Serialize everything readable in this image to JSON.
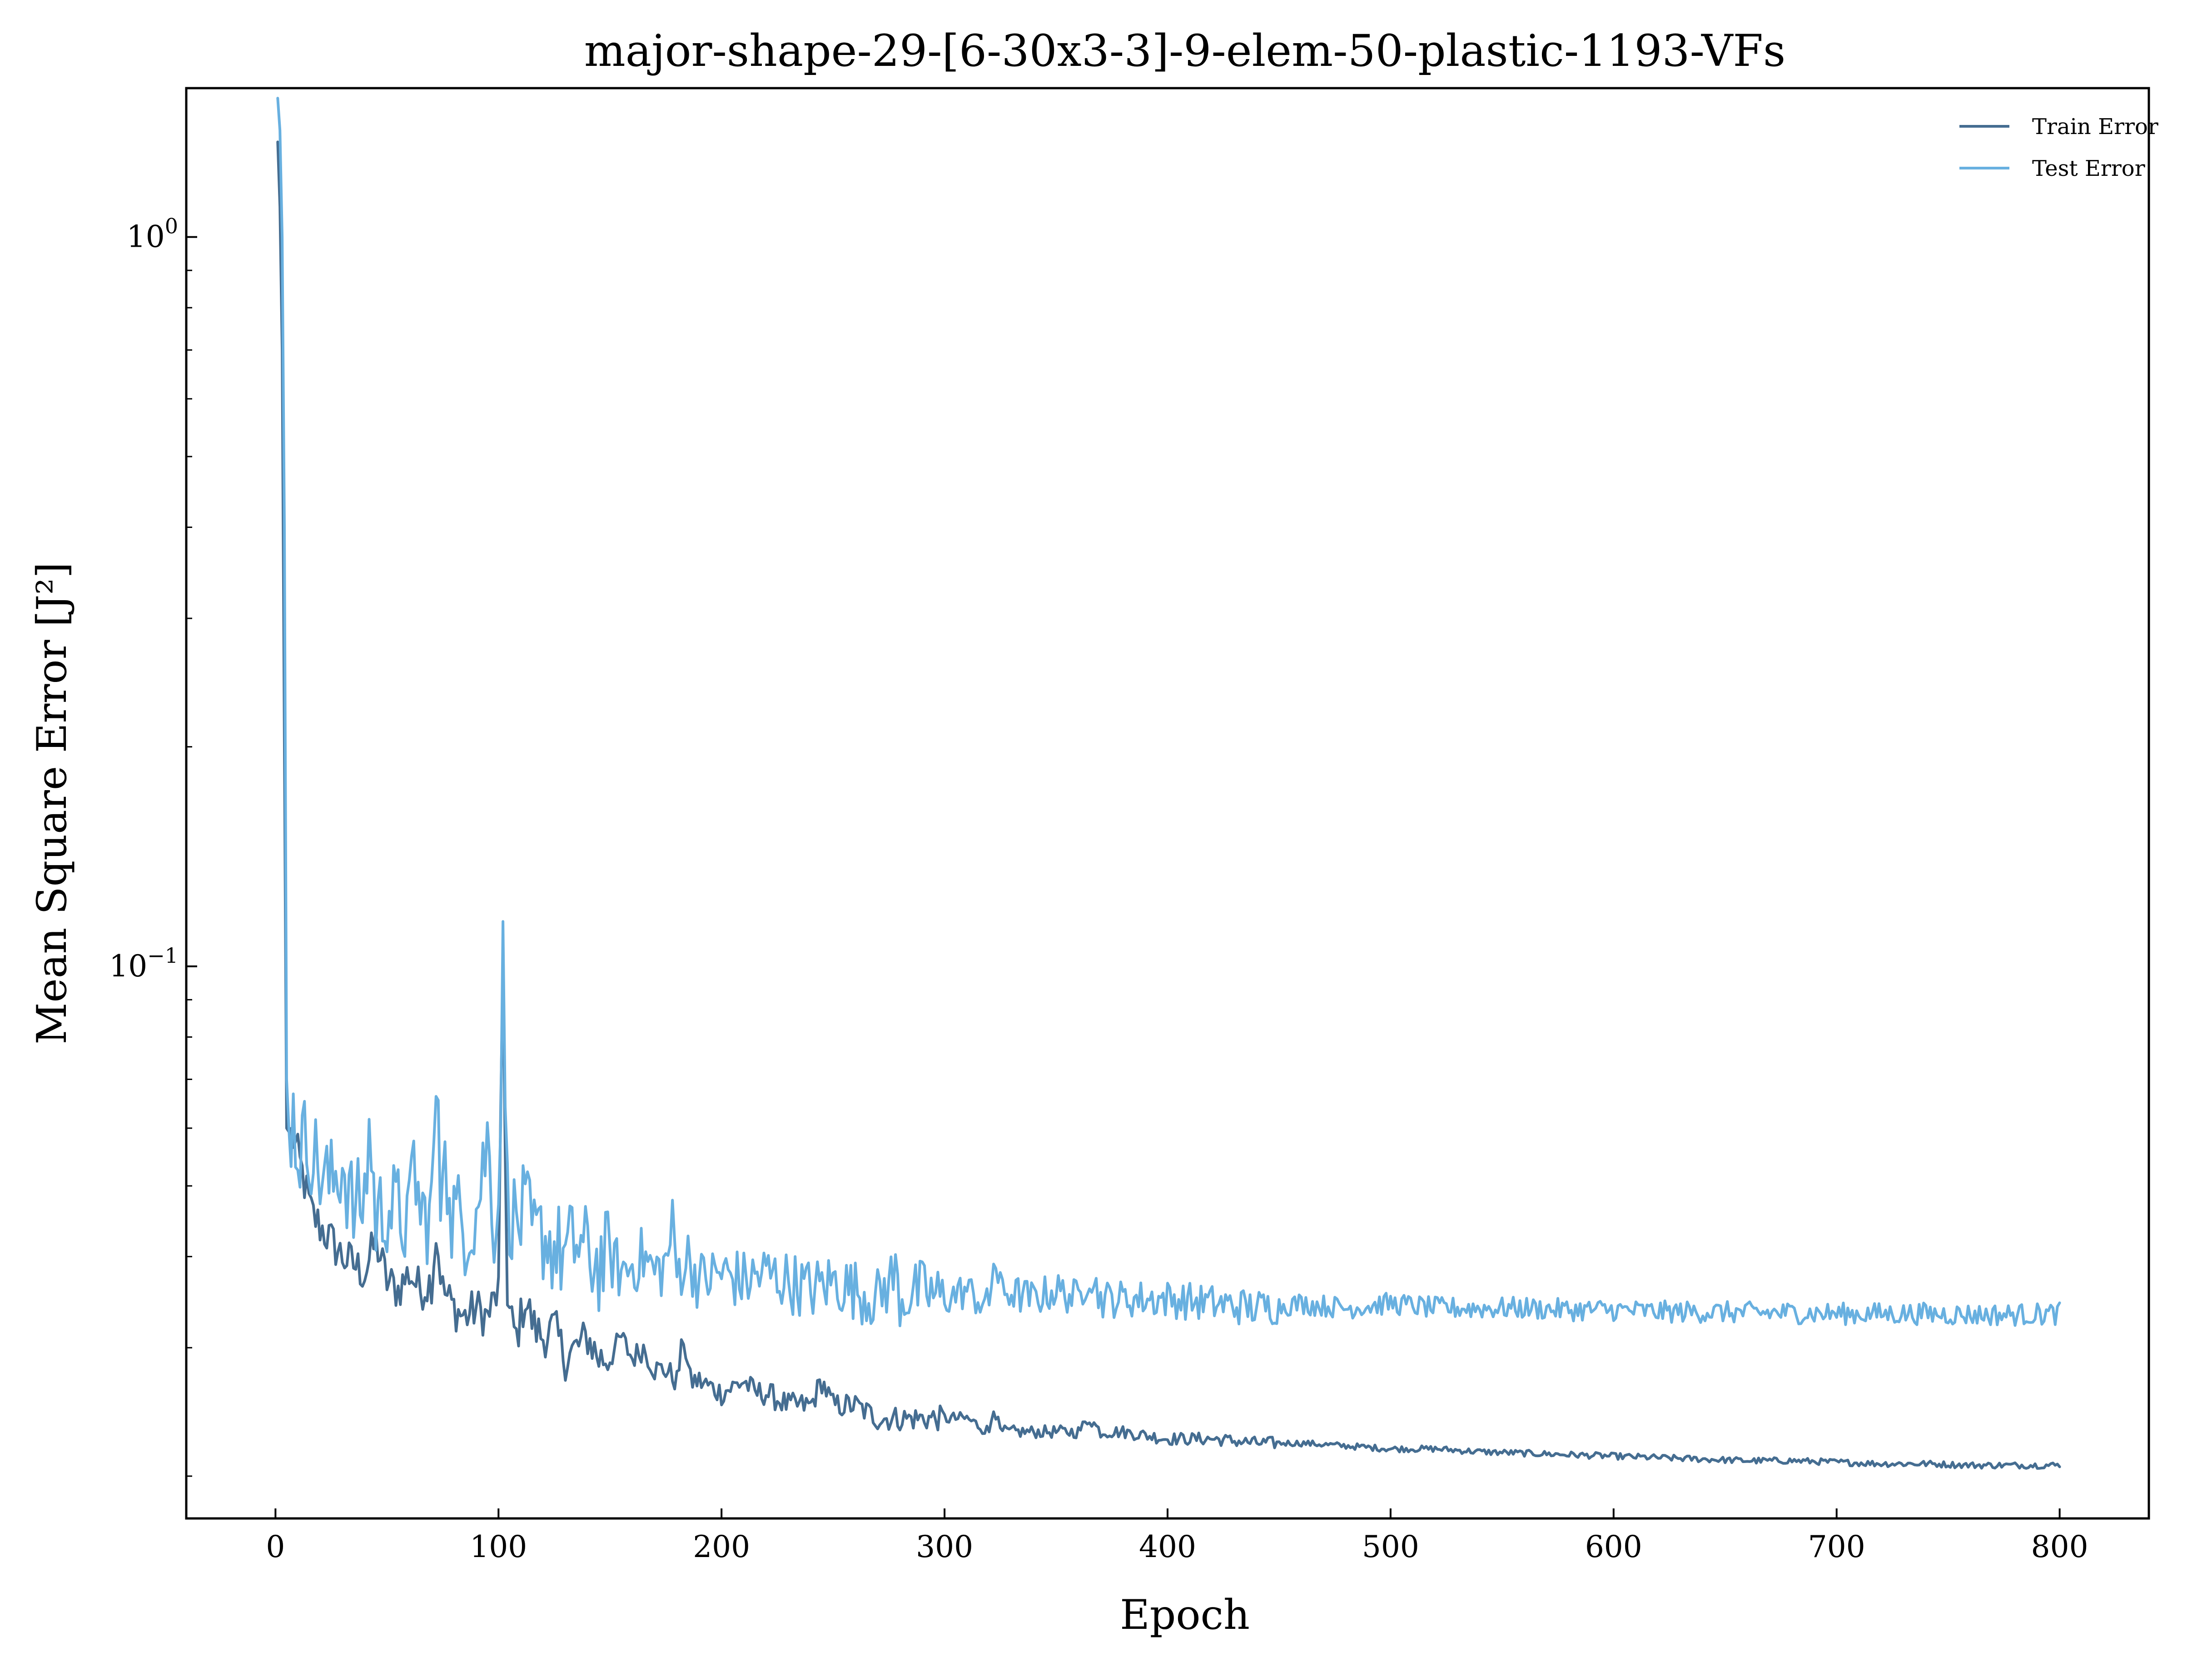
{
  "chart_data": {
    "type": "line",
    "title": "major-shape-29-[6-30x3-3]-9-elem-50-plastic-1193-VFs",
    "xlabel": "Epoch",
    "ylabel": "Mean Square Error [J²]",
    "xlim": [
      -40,
      840
    ],
    "ylim": [
      0.0175,
      1.6
    ],
    "yscale": "log",
    "grid": false,
    "legend_position": "top-right",
    "x_ticks": [
      0,
      100,
      200,
      300,
      400,
      500,
      600,
      700,
      800
    ],
    "y_ticks": [
      {
        "value": 1.0,
        "base": "10",
        "exp": "0"
      },
      {
        "value": 0.1,
        "base": "10",
        "exp": "−1"
      }
    ],
    "series": [
      {
        "name": "Train Error",
        "color": "#456d91",
        "points": [
          [
            1,
            1.35
          ],
          [
            2,
            1.1
          ],
          [
            3,
            0.7
          ],
          [
            4,
            0.2
          ],
          [
            5,
            0.06
          ],
          [
            8,
            0.058
          ],
          [
            12,
            0.052
          ],
          [
            16,
            0.046
          ],
          [
            20,
            0.044
          ],
          [
            25,
            0.042
          ],
          [
            30,
            0.04
          ],
          [
            35,
            0.039
          ],
          [
            40,
            0.038
          ],
          [
            45,
            0.042
          ],
          [
            50,
            0.037
          ],
          [
            55,
            0.036
          ],
          [
            60,
            0.038
          ],
          [
            65,
            0.036
          ],
          [
            70,
            0.037
          ],
          [
            72,
            0.043
          ],
          [
            75,
            0.036
          ],
          [
            80,
            0.034
          ],
          [
            85,
            0.033
          ],
          [
            90,
            0.034
          ],
          [
            95,
            0.033
          ],
          [
            100,
            0.036
          ],
          [
            102,
            0.1
          ],
          [
            104,
            0.034
          ],
          [
            108,
            0.031
          ],
          [
            112,
            0.035
          ],
          [
            116,
            0.032
          ],
          [
            120,
            0.031
          ],
          [
            125,
            0.032
          ],
          [
            130,
            0.029
          ],
          [
            135,
            0.03
          ],
          [
            140,
            0.031
          ],
          [
            145,
            0.029
          ],
          [
            150,
            0.029
          ],
          [
            155,
            0.031
          ],
          [
            160,
            0.029
          ],
          [
            165,
            0.03
          ],
          [
            170,
            0.028
          ],
          [
            175,
            0.028
          ],
          [
            180,
            0.027
          ],
          [
            183,
            0.031
          ],
          [
            186,
            0.027
          ],
          [
            190,
            0.027
          ],
          [
            200,
            0.026
          ],
          [
            210,
            0.027
          ],
          [
            215,
            0.026
          ],
          [
            220,
            0.026
          ],
          [
            230,
            0.025
          ],
          [
            240,
            0.025
          ],
          [
            245,
            0.027
          ],
          [
            250,
            0.025
          ],
          [
            260,
            0.025
          ],
          [
            270,
            0.024
          ],
          [
            280,
            0.024
          ],
          [
            290,
            0.024
          ],
          [
            300,
            0.024
          ],
          [
            310,
            0.024
          ],
          [
            320,
            0.023
          ],
          [
            322,
            0.025
          ],
          [
            325,
            0.023
          ],
          [
            340,
            0.023
          ],
          [
            350,
            0.023
          ],
          [
            360,
            0.023
          ],
          [
            365,
            0.024
          ],
          [
            370,
            0.023
          ],
          [
            380,
            0.023
          ],
          [
            400,
            0.0225
          ],
          [
            420,
            0.0225
          ],
          [
            440,
            0.0222
          ],
          [
            460,
            0.0222
          ],
          [
            480,
            0.022
          ],
          [
            500,
            0.0218
          ],
          [
            520,
            0.0218
          ],
          [
            540,
            0.0216
          ],
          [
            560,
            0.0215
          ],
          [
            580,
            0.0214
          ],
          [
            600,
            0.0213
          ],
          [
            620,
            0.0212
          ],
          [
            640,
            0.0211
          ],
          [
            660,
            0.021
          ],
          [
            680,
            0.021
          ],
          [
            700,
            0.0209
          ],
          [
            720,
            0.0208
          ],
          [
            740,
            0.0208
          ],
          [
            760,
            0.0207
          ],
          [
            780,
            0.0207
          ],
          [
            800,
            0.0207
          ]
        ]
      },
      {
        "name": "Test Error",
        "color": "#68b0e0",
        "points": [
          [
            1,
            1.55
          ],
          [
            2,
            1.4
          ],
          [
            3,
            1.0
          ],
          [
            4,
            0.4
          ],
          [
            5,
            0.07
          ],
          [
            6,
            0.06
          ],
          [
            8,
            0.062
          ],
          [
            10,
            0.056
          ],
          [
            15,
            0.058
          ],
          [
            20,
            0.052
          ],
          [
            25,
            0.05
          ],
          [
            30,
            0.054
          ],
          [
            35,
            0.046
          ],
          [
            40,
            0.048
          ],
          [
            42,
            0.06
          ],
          [
            45,
            0.045
          ],
          [
            50,
            0.047
          ],
          [
            55,
            0.046
          ],
          [
            60,
            0.044
          ],
          [
            62,
            0.055
          ],
          [
            65,
            0.045
          ],
          [
            70,
            0.046
          ],
          [
            72,
            0.068
          ],
          [
            74,
            0.048
          ],
          [
            76,
            0.064
          ],
          [
            78,
            0.044
          ],
          [
            80,
            0.046
          ],
          [
            85,
            0.044
          ],
          [
            90,
            0.046
          ],
          [
            95,
            0.058
          ],
          [
            98,
            0.045
          ],
          [
            100,
            0.047
          ],
          [
            102,
            0.102
          ],
          [
            104,
            0.048
          ],
          [
            108,
            0.044
          ],
          [
            112,
            0.046
          ],
          [
            116,
            0.042
          ],
          [
            120,
            0.043
          ],
          [
            125,
            0.041
          ],
          [
            130,
            0.04
          ],
          [
            135,
            0.042
          ],
          [
            140,
            0.04
          ],
          [
            145,
            0.039
          ],
          [
            150,
            0.04
          ],
          [
            155,
            0.038
          ],
          [
            160,
            0.039
          ],
          [
            165,
            0.04
          ],
          [
            170,
            0.038
          ],
          [
            175,
            0.039
          ],
          [
            178,
            0.044
          ],
          [
            180,
            0.038
          ],
          [
            185,
            0.04
          ],
          [
            190,
            0.037
          ],
          [
            200,
            0.038
          ],
          [
            210,
            0.037
          ],
          [
            220,
            0.038
          ],
          [
            230,
            0.037
          ],
          [
            240,
            0.036
          ],
          [
            250,
            0.037
          ],
          [
            260,
            0.036
          ],
          [
            270,
            0.035
          ],
          [
            278,
            0.038
          ],
          [
            280,
            0.035
          ],
          [
            290,
            0.036
          ],
          [
            300,
            0.035
          ],
          [
            310,
            0.036
          ],
          [
            320,
            0.034
          ],
          [
            322,
            0.04
          ],
          [
            325,
            0.036
          ],
          [
            340,
            0.035
          ],
          [
            350,
            0.036
          ],
          [
            360,
            0.035
          ],
          [
            365,
            0.038
          ],
          [
            370,
            0.035
          ],
          [
            380,
            0.035
          ],
          [
            400,
            0.035
          ],
          [
            420,
            0.0345
          ],
          [
            440,
            0.034
          ],
          [
            460,
            0.0345
          ],
          [
            480,
            0.034
          ],
          [
            500,
            0.0345
          ],
          [
            520,
            0.034
          ],
          [
            540,
            0.034
          ],
          [
            560,
            0.034
          ],
          [
            580,
            0.0338
          ],
          [
            600,
            0.0338
          ],
          [
            620,
            0.0336
          ],
          [
            640,
            0.0336
          ],
          [
            660,
            0.0335
          ],
          [
            680,
            0.0335
          ],
          [
            700,
            0.0334
          ],
          [
            720,
            0.0334
          ],
          [
            740,
            0.0334
          ],
          [
            760,
            0.0333
          ],
          [
            780,
            0.0333
          ],
          [
            800,
            0.0334
          ]
        ]
      }
    ]
  }
}
